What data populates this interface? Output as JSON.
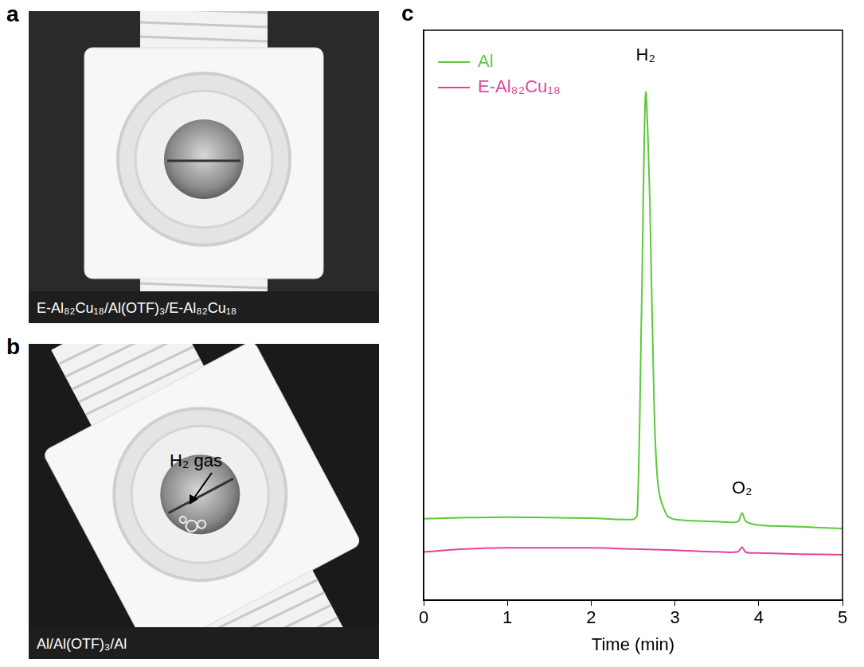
{
  "panels": [
    {
      "label": "a",
      "caption": "E-Al₈₂Cu₁₈/Al(OTF)₃/E-Al₈₂Cu₁₈"
    },
    {
      "label": "b",
      "caption": "Al/Al(OTF)₃/Al",
      "annotation": "H₂ gas"
    }
  ],
  "chart_data": {
    "panel_label": "c",
    "type": "line",
    "x_label": "Time (min)",
    "xlim": [
      0,
      5
    ],
    "xticks": [
      0,
      1,
      2,
      3,
      4,
      5
    ],
    "ylim": [
      0,
      100
    ],
    "tick_labels": "x",
    "grid": false,
    "legend": "upper left",
    "series": [
      {
        "name": "Al",
        "color": "#5cc83c",
        "x": [
          0,
          0.5,
          1,
          1.5,
          2,
          2.5,
          2.55,
          2.6,
          2.65,
          2.7,
          2.75,
          2.8,
          2.9,
          3.0,
          3.5,
          3.75,
          3.8,
          3.85,
          4,
          4.5,
          5
        ],
        "values": [
          14.3,
          14.5,
          14.6,
          14.5,
          14.4,
          14.2,
          15,
          50,
          89,
          70,
          35,
          20,
          15,
          14.2,
          13.8,
          13.8,
          15.3,
          13.8,
          13.2,
          12.9,
          12.6
        ]
      },
      {
        "name": "E-Al₈₂Cu₁₈",
        "color": "#e0459a",
        "x": [
          0,
          0.5,
          1,
          1.5,
          2,
          2.5,
          3,
          3.5,
          3.75,
          3.8,
          3.85,
          4,
          4.5,
          5
        ],
        "values": [
          8.5,
          9.0,
          9.2,
          9.2,
          9.2,
          9.0,
          8.8,
          8.5,
          8.5,
          9.3,
          8.4,
          8.3,
          8.1,
          8.0
        ]
      }
    ],
    "annotations": [
      {
        "text": "H₂",
        "x": 2.65,
        "y": 94
      },
      {
        "text": "O₂",
        "x": 3.8,
        "y": 18
      }
    ]
  }
}
